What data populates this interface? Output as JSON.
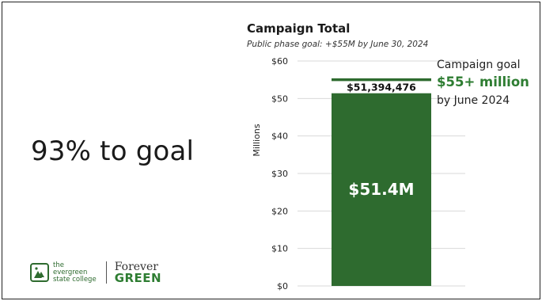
{
  "slide": {
    "headline": "93% to goal"
  },
  "chart_data": {
    "type": "bar",
    "title": "Campaign Total",
    "subtitle": "Public phase goal: +$55M by June 30, 2024",
    "ylabel": "Millions",
    "ylim": [
      0,
      60
    ],
    "yticks": [
      0,
      10,
      20,
      30,
      40,
      50,
      60
    ],
    "ytick_labels": [
      "$0",
      "$10",
      "$20",
      "$30",
      "$40",
      "$50",
      "$60"
    ],
    "grid": true,
    "categories": [
      ""
    ],
    "values": [
      51.394476
    ],
    "bar_color": "#2e6b2f",
    "bar_inner_label": "$51.4M",
    "bar_top_label": "$51,394,476",
    "goal_line": {
      "value": 55,
      "color": "#2e6b2f"
    },
    "goal_note": {
      "line1": "Campaign goal",
      "line2": "$55+ million",
      "line3": "by June 2024",
      "accent": "#2e7d32"
    }
  },
  "logo": {
    "school_lines": [
      "the",
      "evergreen",
      "state college"
    ],
    "forever": "Forever",
    "green": "GREEN"
  }
}
